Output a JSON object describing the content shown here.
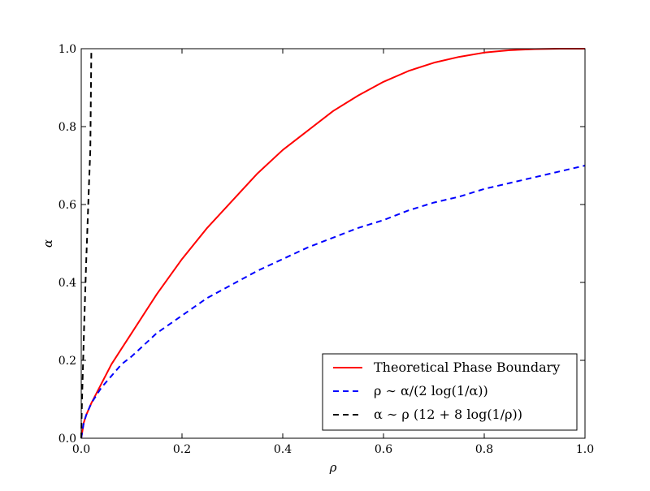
{
  "chart_data": {
    "type": "line",
    "title": "",
    "xlabel": "ρ",
    "ylabel": "α",
    "xlim": [
      0.0,
      1.0
    ],
    "ylim": [
      0.0,
      1.0
    ],
    "xticks": [
      "0.0",
      "0.2",
      "0.4",
      "0.6",
      "0.8",
      "1.0"
    ],
    "yticks": [
      "0.0",
      "0.2",
      "0.4",
      "0.6",
      "0.8",
      "1.0"
    ],
    "grid": false,
    "legend_position": "lower-right",
    "series": [
      {
        "name": "Theoretical Phase Boundary",
        "color": "#ff0000",
        "style": "solid",
        "x": [
          0.0,
          0.005,
          0.01,
          0.02,
          0.04,
          0.06,
          0.08,
          0.1,
          0.15,
          0.2,
          0.25,
          0.3,
          0.35,
          0.4,
          0.45,
          0.5,
          0.55,
          0.6,
          0.65,
          0.7,
          0.75,
          0.8,
          0.85,
          0.9,
          0.95,
          1.0
        ],
        "y": [
          0.0,
          0.04,
          0.06,
          0.09,
          0.14,
          0.19,
          0.23,
          0.27,
          0.37,
          0.46,
          0.54,
          0.61,
          0.68,
          0.74,
          0.79,
          0.84,
          0.88,
          0.915,
          0.943,
          0.964,
          0.979,
          0.99,
          0.996,
          0.999,
          1.0,
          1.0
        ]
      },
      {
        "name": "ρ ∼ α/(2 log(1/α))",
        "color": "#0000ff",
        "style": "dashed",
        "x": [
          0.0,
          0.005,
          0.01,
          0.02,
          0.04,
          0.06,
          0.08,
          0.1,
          0.15,
          0.2,
          0.25,
          0.3,
          0.35,
          0.4,
          0.45,
          0.5,
          0.55,
          0.6,
          0.65,
          0.7,
          0.75,
          0.8,
          0.85,
          0.9,
          0.95,
          1.0
        ],
        "y": [
          0.0,
          0.04,
          0.06,
          0.09,
          0.13,
          0.16,
          0.19,
          0.21,
          0.27,
          0.315,
          0.36,
          0.395,
          0.43,
          0.46,
          0.49,
          0.515,
          0.54,
          0.56,
          0.585,
          0.605,
          0.62,
          0.64,
          0.655,
          0.67,
          0.685,
          0.7
        ]
      },
      {
        "name": "α ∼ ρ (12 + 8 log(1/ρ))",
        "color": "#000000",
        "style": "dashed",
        "x": [
          0.0,
          0.0005,
          0.001,
          0.002,
          0.004,
          0.006,
          0.008,
          0.01,
          0.012,
          0.015,
          0.018,
          0.02
        ],
        "y": [
          0.0,
          0.04,
          0.07,
          0.12,
          0.21,
          0.3,
          0.38,
          0.46,
          0.53,
          0.64,
          0.74,
          0.99
        ]
      }
    ]
  }
}
